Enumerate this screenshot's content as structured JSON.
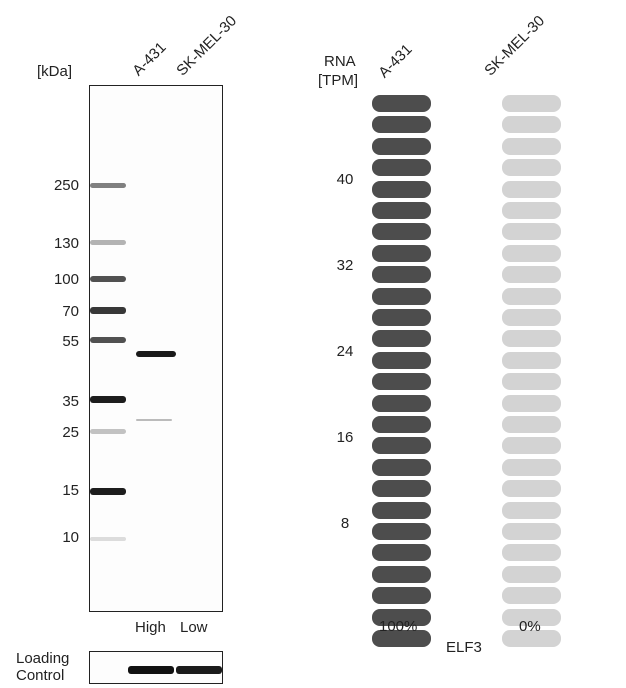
{
  "blot": {
    "unit_label": "[kDa]",
    "lanes": [
      "A-431",
      "SK-MEL-30"
    ],
    "markers": [
      "250",
      "130",
      "100",
      "70",
      "55",
      "35",
      "25",
      "15",
      "10"
    ],
    "lane_levels": [
      "High",
      "Low"
    ],
    "loading_control_label": [
      "Loading",
      "Control"
    ]
  },
  "rna": {
    "axis_title": [
      "RNA",
      "[TPM]"
    ],
    "samples": [
      "A-431",
      "SK-MEL-30"
    ],
    "ticks": [
      "40",
      "32",
      "24",
      "16",
      "8"
    ],
    "percentages": [
      "100%",
      "0%"
    ],
    "gene": "ELF3",
    "colors": {
      "expressed": "#4d4d4d",
      "not_expressed": "#d3d3d3"
    },
    "bar_fill_fraction": [
      1.0,
      0.0
    ]
  }
}
